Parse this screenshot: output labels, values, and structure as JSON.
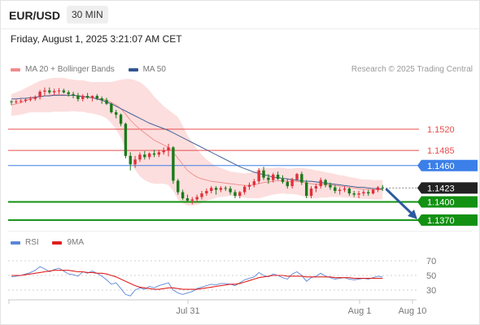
{
  "header": {
    "symbol": "EUR/USD",
    "timeframe": "30 MIN",
    "datetime": "Friday, August 1, 2025 3:21:07 AM CET"
  },
  "legend_main": [
    {
      "label": "MA 20 + Bollinger Bands",
      "color": "#f08c8c"
    },
    {
      "label": "MA 50",
      "color": "#33558f"
    }
  ],
  "legend_rsi": [
    {
      "label": "RSI",
      "color": "#5b86d6"
    },
    {
      "label": "9MA",
      "color": "#e02020"
    }
  ],
  "credit": "Research © 2025 Trading Central",
  "colors": {
    "up_candle": "#e0303a",
    "down_candle": "#1a7a1a",
    "resistance": "#e94c4c",
    "pivot": "#3b7fe8",
    "support": "#129112",
    "last_price_bg": "#222222",
    "band_fill": "#fcdede",
    "arrow": "#2c5aa0"
  },
  "chart_data": [
    {
      "type": "candlestick",
      "title": "",
      "x_ticks": [
        "Jul 31",
        "Aug 1",
        "Aug 10"
      ],
      "ylim": [
        1.1355,
        1.161
      ],
      "levels": [
        {
          "value": 1.152,
          "label": "1.1520",
          "kind": "resistance"
        },
        {
          "value": 1.1485,
          "label": "1.1485",
          "kind": "resistance"
        },
        {
          "value": 1.146,
          "label": "1.1460",
          "kind": "pivot"
        },
        {
          "value": 1.1423,
          "label": "1.1423",
          "kind": "last"
        },
        {
          "value": 1.14,
          "label": "1.1400",
          "kind": "support"
        },
        {
          "value": 1.137,
          "label": "1.1370",
          "kind": "support"
        }
      ],
      "candles": [
        [
          1.1566,
          1.1568,
          1.156,
          1.1565
        ],
        [
          1.1565,
          1.1569,
          1.1562,
          1.1566
        ],
        [
          1.1566,
          1.157,
          1.1563,
          1.1567
        ],
        [
          1.1567,
          1.1572,
          1.1564,
          1.1569
        ],
        [
          1.1569,
          1.1574,
          1.1566,
          1.157
        ],
        [
          1.157,
          1.1576,
          1.1567,
          1.1573
        ],
        [
          1.1573,
          1.1585,
          1.1569,
          1.1582
        ],
        [
          1.1582,
          1.1589,
          1.1575,
          1.1584
        ],
        [
          1.1584,
          1.1589,
          1.1578,
          1.1581
        ],
        [
          1.1581,
          1.1587,
          1.1576,
          1.1583
        ],
        [
          1.1583,
          1.1588,
          1.1578,
          1.1584
        ],
        [
          1.1584,
          1.1587,
          1.1579,
          1.1581
        ],
        [
          1.1581,
          1.1584,
          1.1574,
          1.1578
        ],
        [
          1.1578,
          1.1582,
          1.1571,
          1.1576
        ],
        [
          1.1576,
          1.158,
          1.1566,
          1.157
        ],
        [
          1.157,
          1.1578,
          1.1566,
          1.1575
        ],
        [
          1.1575,
          1.158,
          1.157,
          1.1572
        ],
        [
          1.1572,
          1.1576,
          1.1566,
          1.1575
        ],
        [
          1.1575,
          1.1578,
          1.1568,
          1.1571
        ],
        [
          1.1571,
          1.1574,
          1.1562,
          1.1568
        ],
        [
          1.1568,
          1.1572,
          1.156,
          1.1562
        ],
        [
          1.1562,
          1.1564,
          1.1546,
          1.1548
        ],
        [
          1.1548,
          1.1552,
          1.1538,
          1.1544
        ],
        [
          1.1544,
          1.1546,
          1.1525,
          1.1529
        ],
        [
          1.1529,
          1.1531,
          1.1472,
          1.1476
        ],
        [
          1.1476,
          1.1482,
          1.1452,
          1.1462
        ],
        [
          1.1462,
          1.1476,
          1.1456,
          1.147
        ],
        [
          1.147,
          1.1482,
          1.1466,
          1.1478
        ],
        [
          1.1478,
          1.1484,
          1.147,
          1.1474
        ],
        [
          1.1474,
          1.1482,
          1.147,
          1.148
        ],
        [
          1.148,
          1.1486,
          1.1474,
          1.1478
        ],
        [
          1.1478,
          1.1486,
          1.1474,
          1.1482
        ],
        [
          1.1482,
          1.149,
          1.1478,
          1.1485
        ],
        [
          1.1485,
          1.1496,
          1.1475,
          1.149
        ],
        [
          1.149,
          1.1492,
          1.143,
          1.1435
        ],
        [
          1.1435,
          1.1438,
          1.1412,
          1.1416
        ],
        [
          1.1416,
          1.142,
          1.1403,
          1.1406
        ],
        [
          1.1406,
          1.1412,
          1.14,
          1.1402
        ],
        [
          1.1402,
          1.1408,
          1.1396,
          1.1404
        ],
        [
          1.1404,
          1.1412,
          1.14,
          1.1408
        ],
        [
          1.1408,
          1.1418,
          1.1404,
          1.1414
        ],
        [
          1.1414,
          1.1422,
          1.141,
          1.1418
        ],
        [
          1.1418,
          1.1426,
          1.1414,
          1.1423
        ],
        [
          1.1423,
          1.1426,
          1.1412,
          1.142
        ],
        [
          1.142,
          1.1426,
          1.1416,
          1.1423
        ],
        [
          1.1423,
          1.1426,
          1.1418,
          1.1422
        ],
        [
          1.1422,
          1.1426,
          1.1412,
          1.1416
        ],
        [
          1.1416,
          1.142,
          1.1406,
          1.141
        ],
        [
          1.141,
          1.1418,
          1.1406,
          1.1416
        ],
        [
          1.1416,
          1.1428,
          1.1412,
          1.1425
        ],
        [
          1.1425,
          1.1432,
          1.142,
          1.1428
        ],
        [
          1.1428,
          1.1438,
          1.1424,
          1.1434
        ],
        [
          1.1434,
          1.1456,
          1.143,
          1.1452
        ],
        [
          1.1452,
          1.1458,
          1.1436,
          1.144
        ],
        [
          1.144,
          1.1446,
          1.143,
          1.1436
        ],
        [
          1.1436,
          1.1448,
          1.1432,
          1.1445
        ],
        [
          1.1445,
          1.145,
          1.1436,
          1.1438
        ],
        [
          1.1438,
          1.1444,
          1.143,
          1.1433
        ],
        [
          1.1433,
          1.1438,
          1.1422,
          1.1426
        ],
        [
          1.1426,
          1.144,
          1.1422,
          1.1437
        ],
        [
          1.1437,
          1.1448,
          1.1434,
          1.1446
        ],
        [
          1.1446,
          1.145,
          1.1428,
          1.1432
        ],
        [
          1.1432,
          1.1436,
          1.1406,
          1.141
        ],
        [
          1.141,
          1.1426,
          1.1406,
          1.1422
        ],
        [
          1.1422,
          1.143,
          1.1416,
          1.1426
        ],
        [
          1.1426,
          1.144,
          1.1422,
          1.1436
        ],
        [
          1.1436,
          1.1438,
          1.1424,
          1.1428
        ],
        [
          1.1428,
          1.1432,
          1.142,
          1.1424
        ],
        [
          1.1424,
          1.1428,
          1.1414,
          1.1418
        ],
        [
          1.1418,
          1.1424,
          1.1412,
          1.142
        ],
        [
          1.142,
          1.1426,
          1.1416,
          1.1422
        ],
        [
          1.1422,
          1.1424,
          1.141,
          1.1414
        ],
        [
          1.1414,
          1.1418,
          1.1408,
          1.1412
        ],
        [
          1.1412,
          1.1418,
          1.1406,
          1.1414
        ],
        [
          1.1414,
          1.142,
          1.141,
          1.1416
        ],
        [
          1.1416,
          1.142,
          1.141,
          1.1414
        ],
        [
          1.1414,
          1.1422,
          1.1412,
          1.142
        ],
        [
          1.142,
          1.1426,
          1.1416,
          1.1424
        ],
        [
          1.1424,
          1.1428,
          1.1418,
          1.1423
        ]
      ],
      "ma20": [
        1.156,
        1.1562,
        1.1564,
        1.1567,
        1.157,
        1.1572,
        1.1574,
        1.1575,
        1.1576,
        1.1577,
        1.1577,
        1.1577,
        1.1576,
        1.1576,
        1.1575,
        1.1575,
        1.1573,
        1.1572,
        1.1571,
        1.157,
        1.1568,
        1.1564,
        1.156,
        1.1554,
        1.1545,
        1.1535,
        1.1527,
        1.152,
        1.1514,
        1.1508,
        1.1502,
        1.1498,
        1.1494,
        1.149,
        1.1482,
        1.1472,
        1.1462,
        1.1452,
        1.1446,
        1.1441,
        1.1438,
        1.1436,
        1.1434,
        1.1433,
        1.1432,
        1.1431,
        1.143,
        1.1429,
        1.1428,
        1.1427,
        1.1427,
        1.1428,
        1.143,
        1.1432,
        1.1433,
        1.1434,
        1.1435,
        1.1435,
        1.1434,
        1.1434,
        1.1434,
        1.1433,
        1.1431,
        1.143,
        1.1429,
        1.1429,
        1.1428,
        1.1428,
        1.1427,
        1.1426,
        1.1425,
        1.1424,
        1.1423,
        1.1422,
        1.1421,
        1.1421,
        1.142,
        1.142,
        1.142
      ],
      "ma50": [
        1.157,
        1.157,
        1.1571,
        1.1571,
        1.1572,
        1.1573,
        1.1574,
        1.1575,
        1.1575,
        1.1576,
        1.1576,
        1.1576,
        1.1576,
        1.1576,
        1.1575,
        1.1574,
        1.1573,
        1.1572,
        1.157,
        1.1568,
        1.1565,
        1.1562,
        1.1558,
        1.1554,
        1.155,
        1.1546,
        1.1542,
        1.1538,
        1.1534,
        1.153,
        1.1527,
        1.1524,
        1.1521,
        1.1518,
        1.1514,
        1.151,
        1.1506,
        1.1502,
        1.1498,
        1.1494,
        1.149,
        1.1486,
        1.1482,
        1.1478,
        1.1474,
        1.147,
        1.1466,
        1.1462,
        1.1458,
        1.1455,
        1.1452,
        1.1449,
        1.1447,
        1.1445,
        1.1443,
        1.1441,
        1.144,
        1.1439,
        1.1438,
        1.1437,
        1.1436,
        1.1435,
        1.1434,
        1.1434,
        1.1433,
        1.1432,
        1.1431,
        1.143,
        1.1429,
        1.1428,
        1.1427,
        1.1426,
        1.1425,
        1.1424,
        1.1424,
        1.1423,
        1.1422,
        1.1422,
        1.1421
      ],
      "bb_width": [
        0.0018,
        0.0019,
        0.002,
        0.0021,
        0.0022,
        0.0024,
        0.0026,
        0.0027,
        0.0028,
        0.0028,
        0.0028,
        0.0028,
        0.0027,
        0.0026,
        0.0026,
        0.0026,
        0.0026,
        0.0026,
        0.0027,
        0.0028,
        0.003,
        0.0034,
        0.004,
        0.0048,
        0.0058,
        0.0068,
        0.0074,
        0.0078,
        0.0078,
        0.0076,
        0.0072,
        0.0068,
        0.0064,
        0.0062,
        0.0064,
        0.0068,
        0.0064,
        0.0058,
        0.0052,
        0.0046,
        0.004,
        0.0034,
        0.003,
        0.0026,
        0.0024,
        0.0022,
        0.002,
        0.002,
        0.002,
        0.002,
        0.0021,
        0.0022,
        0.0024,
        0.0024,
        0.0023,
        0.0022,
        0.0022,
        0.0021,
        0.0021,
        0.0021,
        0.0022,
        0.0023,
        0.0024,
        0.0024,
        0.0023,
        0.0022,
        0.0021,
        0.002,
        0.0019,
        0.0018,
        0.0018,
        0.0017,
        0.0017,
        0.0016,
        0.0016,
        0.0016,
        0.0016,
        0.0016,
        0.0016
      ],
      "forecast": {
        "from": 1.1423,
        "to": 1.137
      }
    },
    {
      "type": "line",
      "title": "",
      "ylim": [
        20,
        80
      ],
      "y_ticks": [
        70,
        50,
        30
      ],
      "series": [
        {
          "name": "RSI",
          "values": [
            48,
            49,
            50,
            52,
            54,
            57,
            62,
            59,
            55,
            58,
            60,
            56,
            52,
            51,
            49,
            55,
            53,
            56,
            53,
            49,
            44,
            38,
            40,
            32,
            24,
            22,
            30,
            33,
            31,
            35,
            33,
            36,
            38,
            40,
            30,
            26,
            24,
            26,
            28,
            32,
            34,
            36,
            38,
            37,
            39,
            39,
            38,
            36,
            40,
            44,
            46,
            48,
            54,
            50,
            48,
            52,
            50,
            47,
            45,
            52,
            55,
            50,
            42,
            47,
            49,
            53,
            49,
            47,
            45,
            46,
            47,
            45,
            44,
            45,
            46,
            45,
            47,
            49,
            48
          ]
        },
        {
          "name": "9MA",
          "values": [
            50,
            50,
            50,
            51,
            52,
            53,
            54,
            55,
            56,
            57,
            57,
            57,
            57,
            56,
            55,
            55,
            54,
            54,
            53,
            53,
            52,
            50,
            48,
            45,
            42,
            39,
            36,
            34,
            33,
            32,
            31,
            31,
            32,
            33,
            33,
            32,
            31,
            31,
            31,
            31,
            32,
            33,
            34,
            35,
            36,
            37,
            38,
            38,
            39,
            41,
            43,
            45,
            47,
            48,
            49,
            50,
            50,
            50,
            49,
            49,
            49,
            49,
            48,
            48,
            48,
            48,
            48,
            48,
            47,
            47,
            47,
            47,
            46,
            46,
            46,
            46,
            46,
            46,
            46
          ]
        }
      ]
    }
  ]
}
